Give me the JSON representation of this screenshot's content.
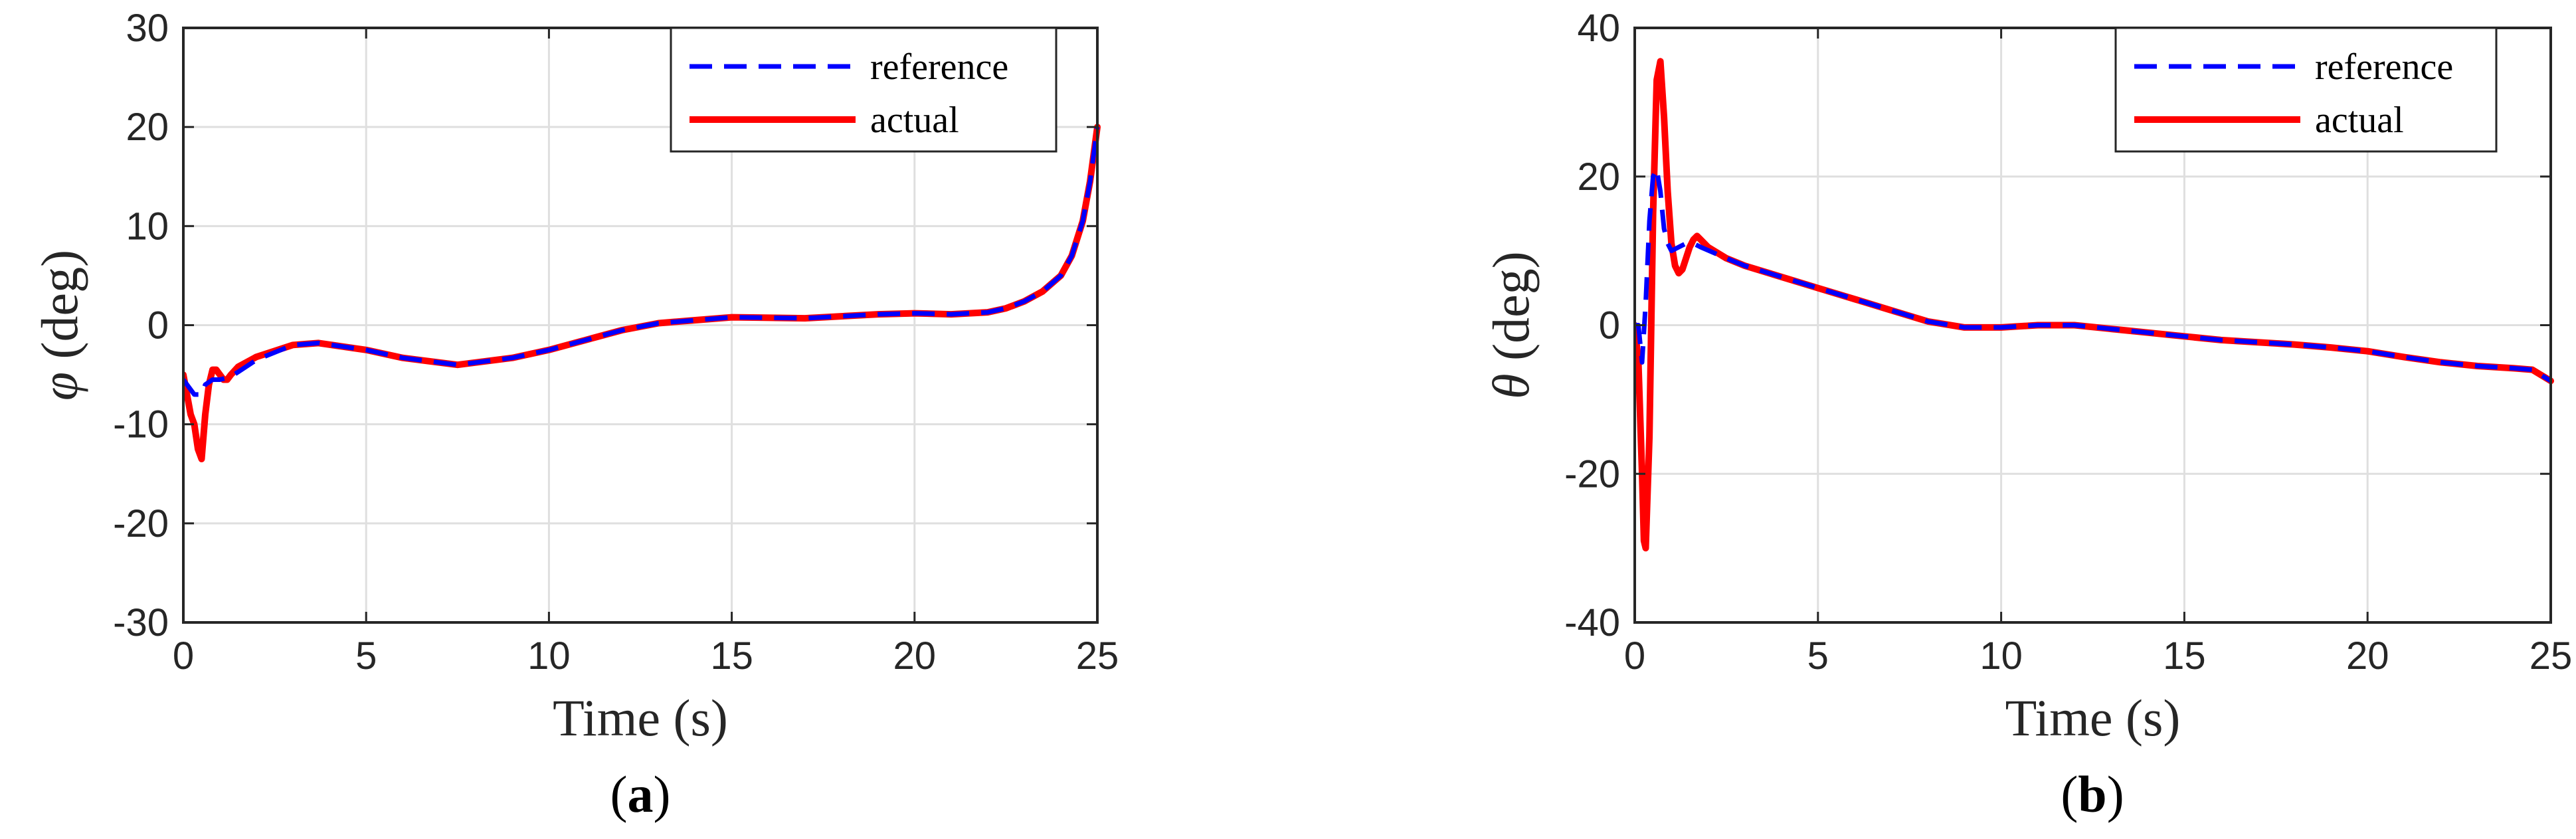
{
  "chart_data": [
    {
      "type": "line",
      "panel": "a",
      "caption": {
        "open": "(",
        "letter": "a",
        "close": ")"
      },
      "title": "",
      "xlabel": "Time (s)",
      "ylabel_symbol": "φ",
      "ylabel_unit": "(deg)",
      "xlim": [
        0,
        25
      ],
      "ylim": [
        -30,
        30
      ],
      "xticks": [
        0,
        5,
        10,
        15,
        20,
        25
      ],
      "yticks": [
        -30,
        -20,
        -10,
        0,
        10,
        20,
        30
      ],
      "grid": true,
      "legend_position": "top-right",
      "series": [
        {
          "name": "reference",
          "color": "#0000ff",
          "style": "dashed",
          "x": [
            0,
            0.1,
            0.3,
            0.5,
            0.6,
            0.8,
            1.0,
            1.3,
            2,
            3,
            3.7,
            5,
            6,
            7.5,
            9,
            10,
            11,
            12,
            13,
            14,
            15,
            17,
            19,
            20,
            21,
            22,
            22.5,
            23,
            23.5,
            24,
            24.3,
            24.6,
            24.8,
            25
          ],
          "y": [
            -5.5,
            -6,
            -7,
            -7,
            -6,
            -5.5,
            -5.5,
            -5.2,
            -3.5,
            -2,
            -1.8,
            -2.5,
            -3.3,
            -4,
            -3.3,
            -2.5,
            -1.5,
            -0.5,
            0.2,
            0.5,
            0.8,
            0.7,
            1.1,
            1.2,
            1.1,
            1.3,
            1.7,
            2.4,
            3.4,
            5,
            7,
            10.5,
            14.5,
            20
          ]
        },
        {
          "name": "actual",
          "color": "#ff0000",
          "style": "solid",
          "x": [
            0,
            0.1,
            0.2,
            0.3,
            0.4,
            0.5,
            0.6,
            0.7,
            0.8,
            0.9,
            1.0,
            1.1,
            1.2,
            1.3,
            1.5,
            2,
            3,
            3.7,
            5,
            6,
            7.5,
            9,
            10,
            11,
            12,
            13,
            14,
            15,
            17,
            19,
            20,
            21,
            22,
            22.5,
            23,
            23.5,
            24,
            24.3,
            24.6,
            24.8,
            25
          ],
          "y": [
            -5,
            -7,
            -9,
            -10,
            -12.5,
            -13.5,
            -9,
            -6,
            -4.5,
            -4.5,
            -5,
            -5.5,
            -5.5,
            -5,
            -4.2,
            -3.2,
            -2,
            -1.8,
            -2.5,
            -3.3,
            -4,
            -3.3,
            -2.5,
            -1.5,
            -0.5,
            0.2,
            0.5,
            0.8,
            0.7,
            1.1,
            1.2,
            1.1,
            1.3,
            1.7,
            2.4,
            3.4,
            5,
            7,
            10.5,
            14.5,
            20
          ]
        }
      ]
    },
    {
      "type": "line",
      "panel": "b",
      "caption": {
        "open": "(",
        "letter": "b",
        "close": ")"
      },
      "title": "",
      "xlabel": "Time (s)",
      "ylabel_symbol": "θ",
      "ylabel_unit": "(deg)",
      "xlim": [
        0,
        25
      ],
      "ylim": [
        -40,
        40
      ],
      "xticks": [
        0,
        5,
        10,
        15,
        20,
        25
      ],
      "yticks": [
        -40,
        -20,
        0,
        20,
        40
      ],
      "grid": true,
      "legend_position": "top-right",
      "series": [
        {
          "name": "reference",
          "color": "#0000ff",
          "style": "dashed",
          "x": [
            0,
            0.1,
            0.2,
            0.3,
            0.4,
            0.5,
            0.6,
            0.7,
            0.8,
            0.9,
            1.0,
            1.2,
            1.4,
            1.6,
            1.8,
            2.5,
            3,
            4,
            5,
            6,
            7,
            8,
            9,
            10,
            11,
            12,
            13,
            14,
            15,
            16,
            17,
            18,
            19,
            20,
            21,
            22,
            23,
            24,
            24.5,
            25
          ],
          "y": [
            0,
            0,
            -5,
            3,
            14,
            20,
            21,
            18,
            13,
            11,
            10,
            10.5,
            11,
            11,
            10.5,
            9,
            8,
            6.5,
            5,
            3.5,
            2,
            0.5,
            -0.3,
            -0.3,
            0,
            0,
            -0.5,
            -1,
            -1.5,
            -2,
            -2.3,
            -2.6,
            -3,
            -3.5,
            -4.3,
            -5,
            -5.5,
            -5.8,
            -6,
            -7.5
          ]
        },
        {
          "name": "actual",
          "color": "#ff0000",
          "style": "solid",
          "x": [
            0,
            0.1,
            0.2,
            0.25,
            0.3,
            0.4,
            0.5,
            0.6,
            0.7,
            0.8,
            0.9,
            1.0,
            1.1,
            1.2,
            1.3,
            1.4,
            1.5,
            1.6,
            1.7,
            1.8,
            2,
            2.5,
            3,
            4,
            5,
            6,
            7,
            8,
            9,
            10,
            11,
            12,
            13,
            14,
            15,
            16,
            17,
            18,
            19,
            20,
            21,
            22,
            23,
            24,
            24.5,
            25
          ],
          "y": [
            0,
            -5,
            -20,
            -29,
            -30,
            -15,
            15,
            33,
            35.5,
            28,
            18,
            11,
            8,
            7,
            7.5,
            9,
            10.5,
            11.5,
            12,
            11.5,
            10.5,
            9,
            8,
            6.5,
            5,
            3.5,
            2,
            0.5,
            -0.3,
            -0.3,
            0,
            0,
            -0.5,
            -1,
            -1.5,
            -2,
            -2.3,
            -2.6,
            -3,
            -3.5,
            -4.3,
            -5,
            -5.5,
            -5.8,
            -6,
            -7.5
          ]
        }
      ]
    }
  ]
}
